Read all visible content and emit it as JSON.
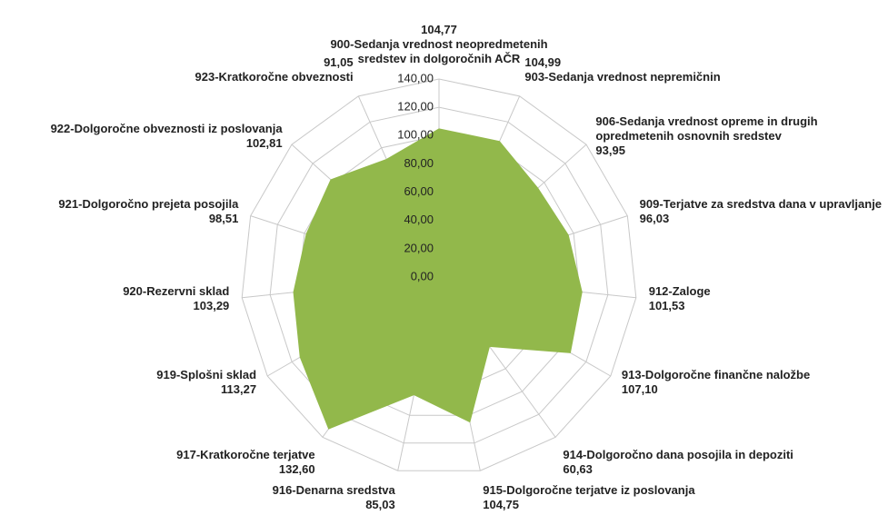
{
  "chart_data": {
    "type": "radar",
    "color": "#92b84b",
    "grid": true,
    "categories": [
      "900-Sedanja vrednost neopredmetenih sredstev in dolgoročnih AČR",
      "903-Sedanja vrednost nepremičnin",
      "906-Sedanja vrednost opreme in drugih opredmetenih osnovnih sredstev",
      "909-Terjatve za sredstva dana v upravljanje",
      "912-Zaloge",
      "913-Dolgoročne finančne naložbe",
      "914-Dolgoročno dana posojila in depoziti",
      "915-Dolgoročne terjatve iz poslovanja",
      "916-Denarna sredstva",
      "917-Kratkoročne terjatve",
      "919-Splošni sklad",
      "920-Rezervni sklad",
      "921-Dolgoročno prejeta posojila",
      "922-Dolgoročne obveznosti iz poslovanja",
      "923-Kratkoročne obveznosti"
    ],
    "values": [
      104.77,
      104.99,
      93.95,
      96.03,
      101.53,
      107.1,
      60.63,
      104.75,
      85.03,
      132.6,
      113.27,
      103.29,
      98.51,
      102.81,
      91.05
    ],
    "value_labels": [
      "104,77",
      "104,99",
      "93,95",
      "96,03",
      "101,53",
      "107,10",
      "60,63",
      "104,75",
      "85,03",
      "132,60",
      "113,27",
      "103,29",
      "98,51",
      "102,81",
      "91,05"
    ],
    "ylim": [
      0,
      140
    ],
    "yticks": [
      {
        "value": 0,
        "label": "0,00"
      },
      {
        "value": 20,
        "label": "20,00"
      },
      {
        "value": 40,
        "label": "40,00"
      },
      {
        "value": 60,
        "label": "60,00"
      },
      {
        "value": 80,
        "label": "80,00"
      },
      {
        "value": 100,
        "label": "100,00"
      },
      {
        "value": 120,
        "label": "120,00"
      },
      {
        "value": 140,
        "label": "140,00"
      }
    ]
  }
}
